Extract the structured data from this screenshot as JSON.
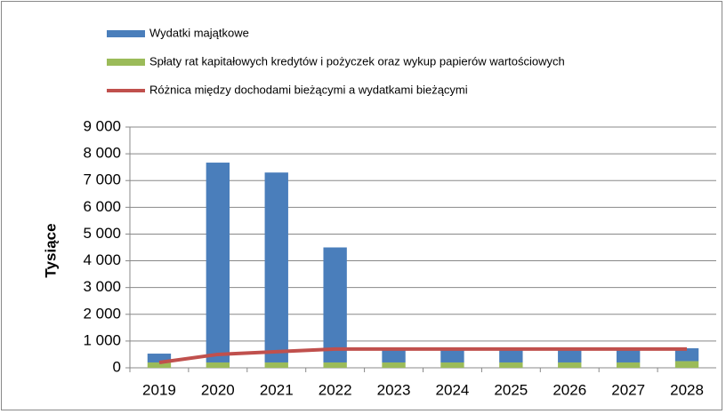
{
  "chart_data": {
    "type": "bar",
    "y_label": "Tysiące",
    "categories": [
      "2019",
      "2020",
      "2021",
      "2022",
      "2023",
      "2024",
      "2025",
      "2026",
      "2027",
      "2028"
    ],
    "series": [
      {
        "name": "Wydatki majątkowe",
        "type": "bar",
        "color": "#4a7ebb",
        "values": [
          330,
          7470,
          7100,
          4300,
          500,
          500,
          500,
          500,
          500,
          480
        ]
      },
      {
        "name": "Spłaty rat kapitałowych kredytów i pożyczek oraz wykup papierów wartościowych",
        "type": "bar",
        "color": "#9bbb59",
        "values": [
          200,
          200,
          200,
          200,
          200,
          200,
          200,
          200,
          200,
          250
        ]
      },
      {
        "name": "Różnica między dochodami bieżącymi a  wydatkami bieżącymi",
        "type": "line",
        "color": "#c0504d",
        "values": [
          200,
          500,
          600,
          700,
          700,
          700,
          700,
          700,
          700,
          700
        ]
      }
    ],
    "ylim": [
      0,
      9000
    ],
    "yticks": [
      0,
      {
        "value": 1000,
        "label": "1 000"
      },
      {
        "value": 2000,
        "label": "2 000"
      },
      {
        "value": 3000,
        "label": "3 000"
      },
      {
        "value": 4000,
        "label": "4 000"
      },
      {
        "value": 5000,
        "label": "5 000"
      },
      {
        "value": 6000,
        "label": "6 000"
      },
      {
        "value": 7000,
        "label": "7 000"
      },
      {
        "value": 8000,
        "label": "8 000"
      },
      {
        "value": 9000,
        "label": "9 000"
      }
    ],
    "grid": true
  }
}
